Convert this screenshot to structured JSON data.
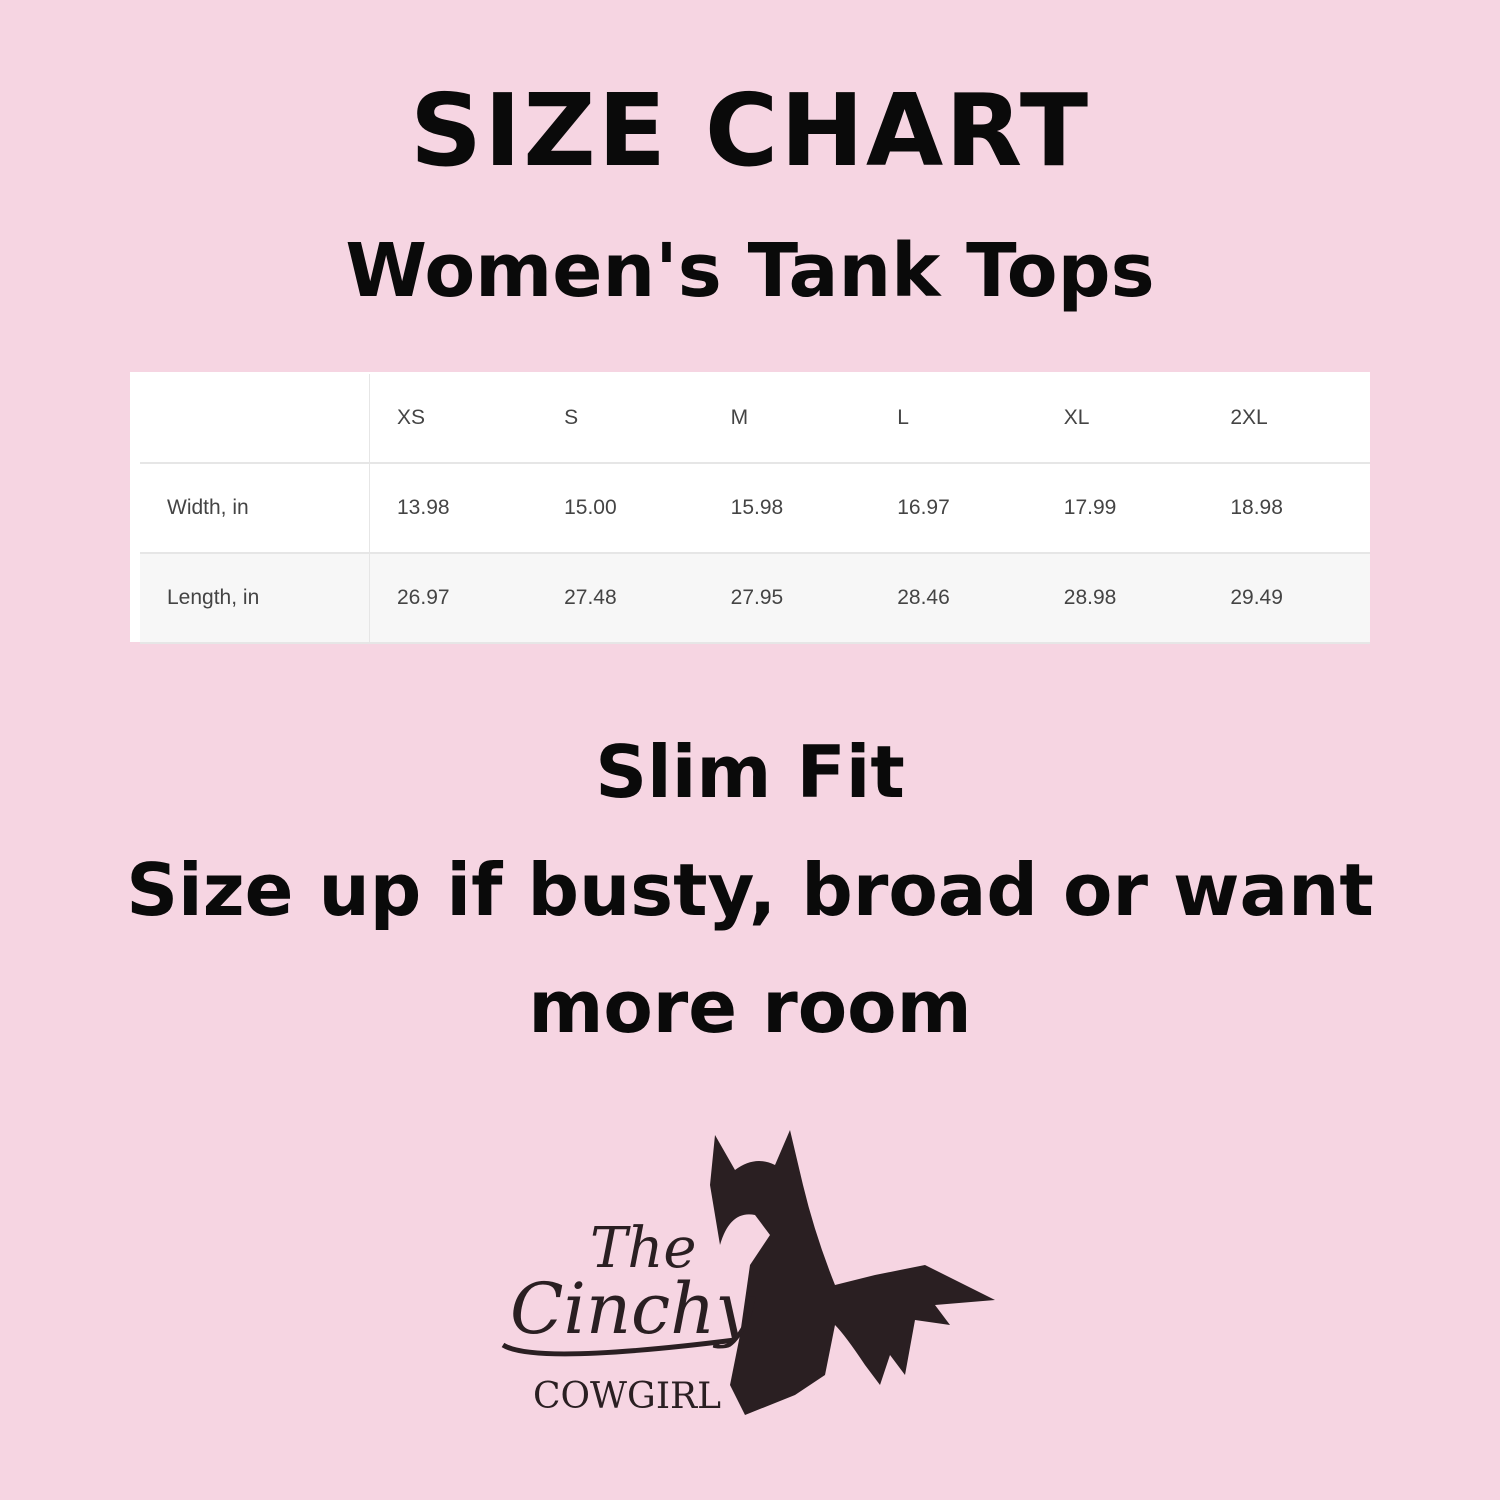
{
  "title": "SIZE CHART",
  "subtitle": "Women's Tank Tops",
  "size_table": {
    "headers": [
      "",
      "XS",
      "S",
      "M",
      "L",
      "XL",
      "2XL"
    ],
    "rows": [
      {
        "label": "Width, in",
        "values": [
          "13.98",
          "15.00",
          "15.98",
          "16.97",
          "17.99",
          "18.98"
        ]
      },
      {
        "label": "Length, in",
        "values": [
          "26.97",
          "27.48",
          "27.95",
          "28.46",
          "28.98",
          "29.49"
        ]
      }
    ]
  },
  "note": {
    "line1": "Slim Fit",
    "line2": "Size up if busty, broad or want",
    "line3": "more room"
  },
  "logo": {
    "text_the": "The",
    "text_cinchy": "Cinchy",
    "text_cowgirl": "COWGIRL",
    "icon": "horse-head-icon"
  },
  "colors": {
    "background": "#f6d5e2",
    "text": "#0a0a0a",
    "logo": "#2a1f22"
  }
}
